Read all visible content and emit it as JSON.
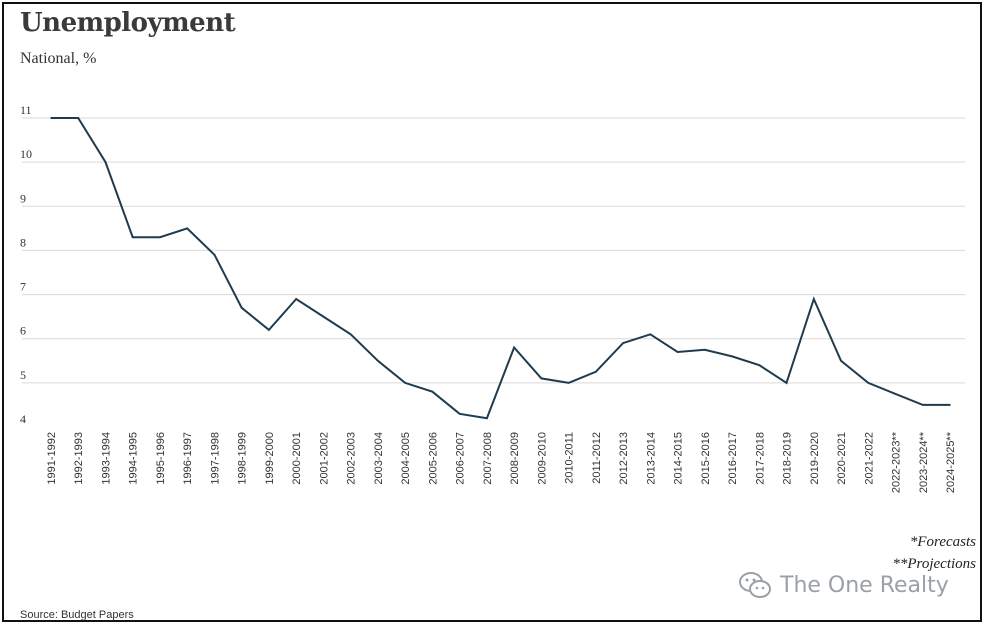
{
  "chart_data": {
    "type": "line",
    "title": "Unemployment",
    "subtitle": "National, %",
    "yticks": [
      4,
      5,
      6,
      7,
      8,
      9,
      10,
      11
    ],
    "ylim": [
      4,
      11
    ],
    "grid": true,
    "categories": [
      "1991-1992",
      "1992-1993",
      "1993-1994",
      "1994-1995",
      "1995-1996",
      "1996-1997",
      "1997-1998",
      "1998-1999",
      "1999-2000",
      "2000-2001",
      "2001-2002",
      "2002-2003",
      "2003-2004",
      "2004-2005",
      "2005-2006",
      "2006-2007",
      "2007-2008",
      "2008-2009",
      "2009-2010",
      "2010-2011",
      "2011-2012",
      "2012-2013",
      "2013-2014",
      "2014-2015",
      "2015-2016",
      "2016-2017",
      "2017-2018",
      "2018-2019",
      "2019-2020",
      "2020-2021",
      "2021-2022",
      "2022-2023**",
      "2023-2024**",
      "2024-2025**"
    ],
    "series": [
      {
        "values": [
          11.0,
          11.0,
          10.0,
          8.3,
          8.3,
          8.5,
          7.9,
          6.7,
          6.2,
          6.9,
          6.5,
          6.1,
          5.5,
          5.0,
          4.8,
          4.3,
          4.2,
          5.8,
          5.1,
          5.0,
          5.25,
          5.9,
          6.1,
          5.7,
          5.75,
          5.6,
          5.4,
          5.0,
          6.9,
          5.5,
          5.0,
          4.75,
          4.5,
          4.5
        ]
      }
    ],
    "line_color": "#1f3b4d",
    "grid_color": "#d9d9d9"
  },
  "notes": {
    "forecasts": "*Forecasts",
    "projections": "**Projections"
  },
  "source": "Source: Budget Papers",
  "watermark": {
    "text": "The One Realty",
    "icon": "wechat-icon"
  }
}
